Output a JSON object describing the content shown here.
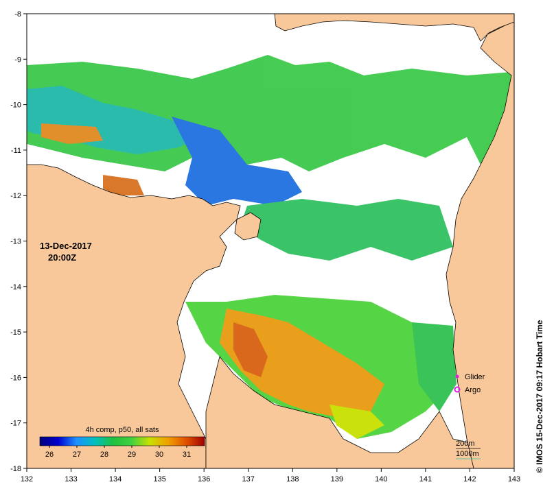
{
  "map": {
    "date_label": "13-Dec-2017",
    "time_label": "20:00Z",
    "x_ticks": [
      "132",
      "133",
      "134",
      "135",
      "136",
      "137",
      "138",
      "139",
      "140",
      "141",
      "142",
      "143"
    ],
    "y_ticks": [
      "-8",
      "-9",
      "-10",
      "-11",
      "-12",
      "-13",
      "-14",
      "-15",
      "-16",
      "-17",
      "-18"
    ],
    "legend_title": "4h comp, p50, all sats",
    "colorbar_ticks": [
      "26",
      "27",
      "28",
      "29",
      "30",
      "31"
    ],
    "glider_label": "Glider",
    "argo_label": "Argo",
    "contour_200_label": "200m",
    "contour_1000_label": "1000m",
    "credit": "© IMOS 15-Dec-2017 09:17 Hobart Time",
    "colors": {
      "land": "#f9c89a",
      "ocean": "#ffffff",
      "marker": "#e020e0",
      "cb_stops": [
        "#00007a",
        "#0000d0",
        "#1e90ff",
        "#00c0c0",
        "#20c040",
        "#40d040",
        "#c8e000",
        "#f0a000",
        "#e05000",
        "#a00000"
      ]
    }
  }
}
